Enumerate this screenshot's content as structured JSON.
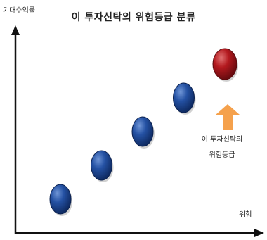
{
  "diagram": {
    "title": "이 투자신탁의 위험등급 분류",
    "y_axis_label": "기대수익률",
    "x_axis_label": "위험",
    "annotation_line1": "이 투자신탁의",
    "annotation_line2": "위험등급",
    "colors": {
      "standard_ball": "#1f4f9e",
      "highlight_ball": "#b3191e",
      "arrow": "#f5a14c",
      "axis": "#111111"
    },
    "risk_levels": [
      {
        "rank": 1,
        "highlighted": false
      },
      {
        "rank": 2,
        "highlighted": false
      },
      {
        "rank": 3,
        "highlighted": false
      },
      {
        "rank": 4,
        "highlighted": false
      },
      {
        "rank": 5,
        "highlighted": true
      }
    ]
  }
}
